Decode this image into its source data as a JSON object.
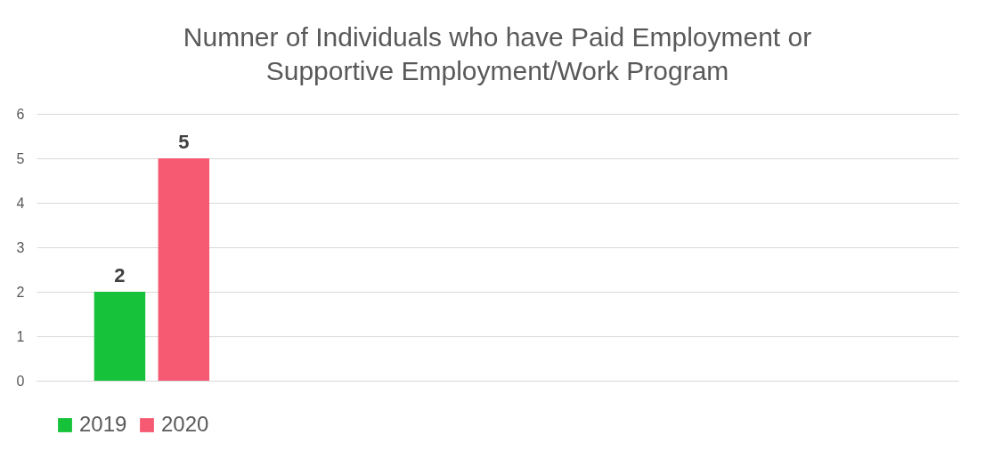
{
  "chart_data": {
    "type": "bar",
    "title": "Numner of Individuals who have Paid Employment or Supportive Employment/Work Program",
    "categories": [
      null,
      null,
      null,
      null
    ],
    "series": [
      {
        "name": "2019",
        "color": "#16c23a",
        "values": [
          2,
          null,
          null,
          null
        ]
      },
      {
        "name": "2020",
        "color": "#f55a72",
        "values": [
          5,
          null,
          null,
          null
        ]
      }
    ],
    "ylim": [
      0,
      6
    ],
    "yticks": [
      0,
      1,
      2,
      3,
      4,
      5,
      6
    ],
    "grid": "y",
    "legend": "bottom",
    "data_labels": true,
    "tick_labels": "y"
  }
}
